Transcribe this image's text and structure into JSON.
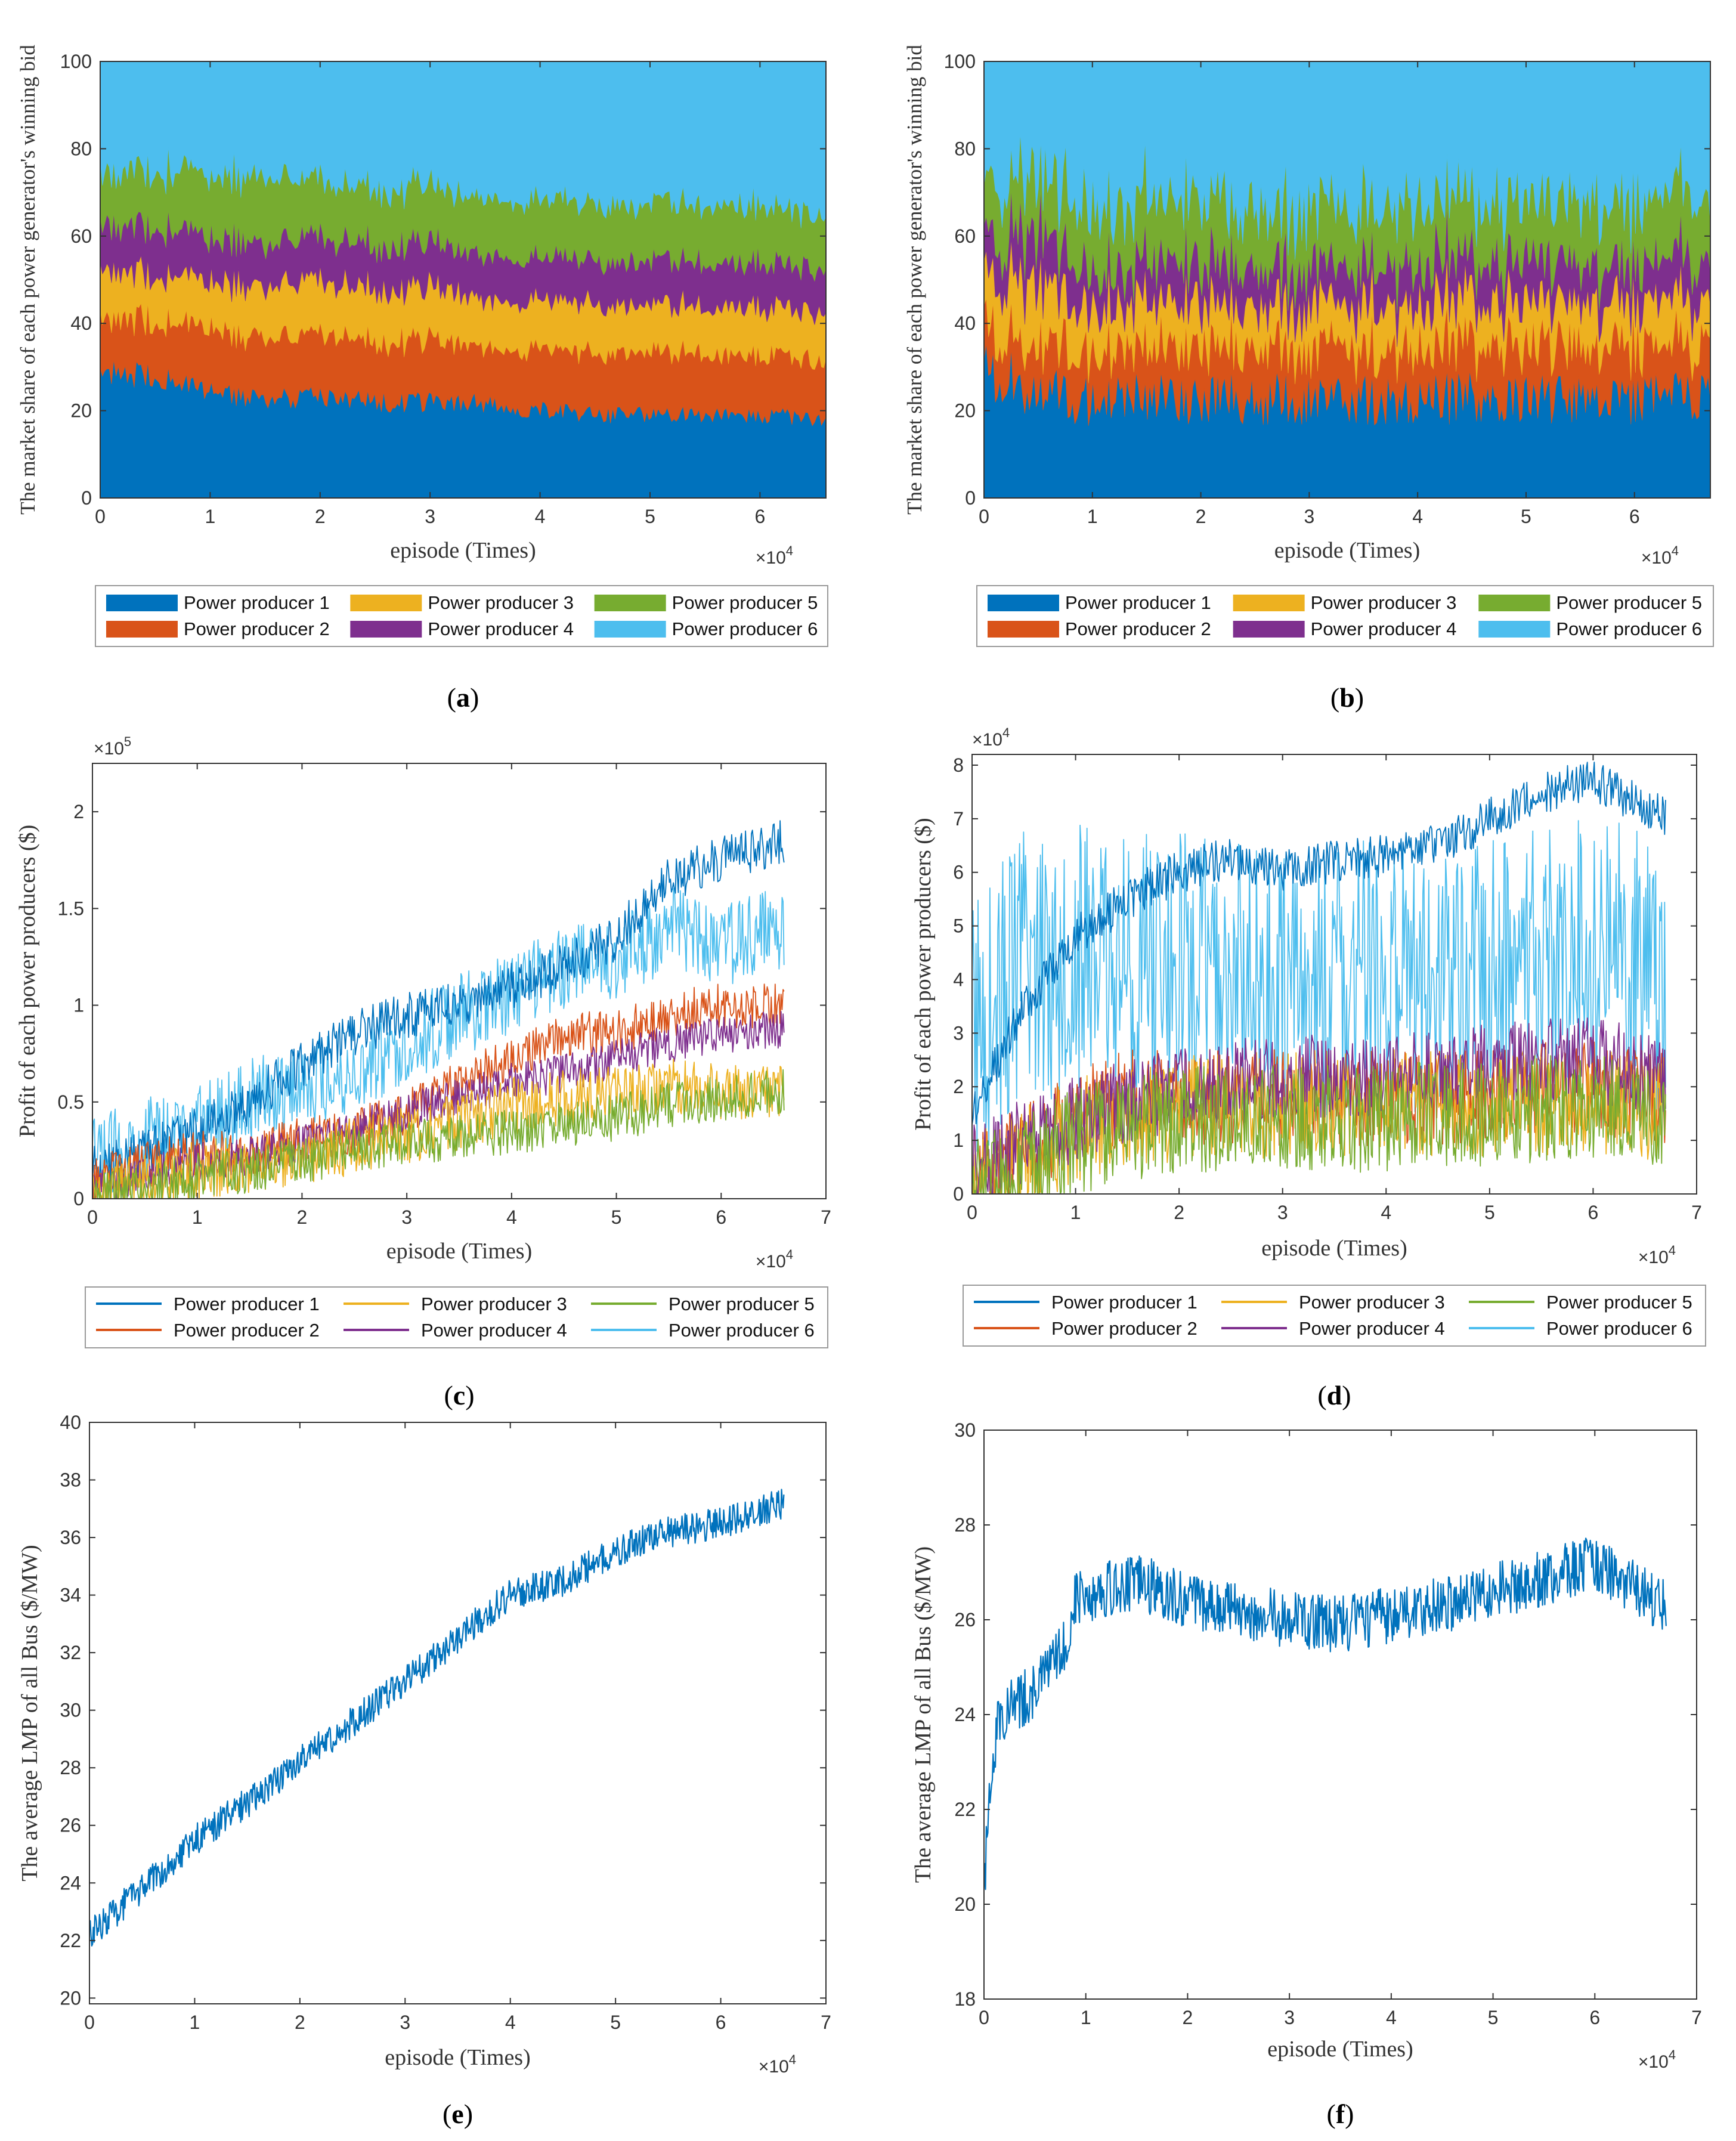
{
  "colors": {
    "p1": "#0072BD",
    "p2": "#D95319",
    "p3": "#EDB120",
    "p4": "#7E2F8E",
    "p5": "#77AC30",
    "p6": "#4DBEEE",
    "axis": "#333333",
    "legend_border": "#9a9a9a"
  },
  "legend": [
    "Power producer 1",
    "Power producer 2",
    "Power producer 3",
    "Power producer 4",
    "Power producer 5",
    "Power producer 6"
  ],
  "x_multiplier": {
    "base": "×10",
    "exp": "4"
  },
  "chart_data": [
    {
      "id": "a",
      "caption": "a",
      "type": "area",
      "xlabel": "episode (Times)",
      "ylabel": "The market share of each power generator's winning bid",
      "xlim": [
        0,
        66000
      ],
      "ylim": [
        0,
        100
      ],
      "xticks": [
        0,
        10000,
        20000,
        30000,
        40000,
        50000,
        60000
      ],
      "xtick_labels": [
        "0",
        "1",
        "2",
        "3",
        "4",
        "5",
        "6"
      ],
      "yticks": [
        0,
        20,
        40,
        60,
        80,
        100
      ],
      "ytick_labels": [
        "0",
        "20",
        "40",
        "60",
        "80",
        "100"
      ],
      "x": [
        0,
        5000,
        10000,
        15000,
        20000,
        25000,
        30000,
        35000,
        40000,
        45000,
        50000,
        55000,
        60000,
        66000
      ],
      "series": [
        {
          "name": "Power producer 1",
          "values": [
            29,
            28,
            24,
            23,
            23,
            22,
            22,
            22,
            20,
            19,
            19,
            19,
            19,
            18
          ]
        },
        {
          "name": "Power producer 2",
          "values": [
            12,
            13,
            14,
            14,
            14,
            14,
            14,
            13,
            14,
            14,
            14,
            14,
            14,
            13
          ]
        },
        {
          "name": "Power producer 3",
          "values": [
            11,
            11,
            11,
            12,
            12,
            12,
            12,
            11,
            11,
            11,
            11,
            11,
            11,
            11
          ]
        },
        {
          "name": "Power producer 4",
          "values": [
            10,
            11,
            10,
            10,
            10,
            10,
            10,
            10,
            10,
            10,
            10,
            10,
            10,
            10
          ]
        },
        {
          "name": "Power producer 5",
          "values": [
            12,
            13,
            14,
            15,
            13,
            13,
            13,
            13,
            13,
            13,
            13,
            13,
            13,
            13
          ]
        },
        {
          "name": "Power producer 6",
          "values": [
            26,
            24,
            27,
            26,
            28,
            29,
            29,
            31,
            32,
            33,
            33,
            33,
            33,
            35
          ]
        }
      ]
    },
    {
      "id": "b",
      "caption": "b",
      "type": "area",
      "xlabel": "episode (Times)",
      "ylabel": "The market share of each power generator's winning bid",
      "xlim": [
        0,
        67000
      ],
      "ylim": [
        0,
        100
      ],
      "xticks": [
        0,
        10000,
        20000,
        30000,
        40000,
        50000,
        60000
      ],
      "xtick_labels": [
        "0",
        "1",
        "2",
        "3",
        "4",
        "5",
        "6"
      ],
      "yticks": [
        0,
        20,
        40,
        60,
        80,
        100
      ],
      "ytick_labels": [
        "0",
        "20",
        "40",
        "60",
        "80",
        "100"
      ],
      "x": [
        0,
        5000,
        10000,
        15000,
        20000,
        25000,
        30000,
        35000,
        40000,
        45000,
        50000,
        55000,
        60000,
        67000
      ],
      "series": [
        {
          "name": "Power producer 1",
          "values": [
            29,
            25,
            22,
            23,
            23,
            23,
            23,
            23,
            23,
            23,
            23,
            23,
            23,
            23
          ]
        },
        {
          "name": "Power producer 2",
          "values": [
            10,
            11,
            12,
            12,
            12,
            12,
            12,
            12,
            12,
            12,
            12,
            12,
            12,
            12
          ]
        },
        {
          "name": "Power producer 3",
          "values": [
            12,
            14,
            10,
            10,
            10,
            10,
            10,
            10,
            10,
            10,
            10,
            10,
            10,
            10
          ]
        },
        {
          "name": "Power producer 4",
          "values": [
            8,
            12,
            8,
            9,
            9,
            9,
            9,
            9,
            9,
            9,
            9,
            9,
            9,
            9
          ]
        },
        {
          "name": "Power producer 5",
          "values": [
            11,
            14,
            14,
            15,
            14,
            14,
            14,
            14,
            14,
            14,
            14,
            14,
            14,
            14
          ]
        },
        {
          "name": "Power producer 6",
          "values": [
            30,
            24,
            34,
            31,
            32,
            32,
            32,
            32,
            32,
            32,
            32,
            32,
            32,
            32
          ]
        }
      ]
    },
    {
      "id": "c",
      "caption": "c",
      "type": "line",
      "xlabel": "episode (Times)",
      "ylabel": "Profit of each power producers ($)",
      "y_multiplier": {
        "base": "×10",
        "exp": "5"
      },
      "xlim": [
        0,
        70000
      ],
      "ylim": [
        0,
        225000
      ],
      "xticks": [
        0,
        10000,
        20000,
        30000,
        40000,
        50000,
        60000,
        70000
      ],
      "xtick_labels": [
        "0",
        "1",
        "2",
        "3",
        "4",
        "5",
        "6",
        "7"
      ],
      "yticks": [
        0,
        50000,
        100000,
        150000,
        200000
      ],
      "ytick_labels": [
        "0",
        "0.5",
        "1",
        "1.5",
        "2"
      ],
      "x": [
        0,
        5000,
        10000,
        15000,
        20000,
        25000,
        30000,
        35000,
        40000,
        45000,
        50000,
        55000,
        60000,
        66000
      ],
      "series": [
        {
          "name": "Power producer 6",
          "values": [
            20000,
            30000,
            40000,
            50000,
            60000,
            65000,
            80000,
            95000,
            105000,
            120000,
            125000,
            140000,
            130000,
            140000
          ],
          "noise": 22000
        },
        {
          "name": "Power producer 1",
          "values": [
            15000,
            25000,
            35000,
            50000,
            70000,
            85000,
            95000,
            100000,
            110000,
            120000,
            135000,
            165000,
            175000,
            185000
          ],
          "noise": 12000
        },
        {
          "name": "Power producer 2",
          "values": [
            10000,
            17000,
            24000,
            23000,
            30000,
            35000,
            45000,
            60000,
            72000,
            85000,
            85000,
            95000,
            100000,
            100000
          ],
          "noise": 12000
        },
        {
          "name": "Power producer 4",
          "values": [
            5000,
            12000,
            19000,
            22000,
            28000,
            35000,
            45000,
            52000,
            60000,
            65000,
            72000,
            80000,
            85000,
            88000
          ],
          "noise": 10000
        },
        {
          "name": "Power producer 3",
          "values": [
            3000,
            8000,
            15000,
            18000,
            22000,
            27000,
            33000,
            40000,
            48000,
            52000,
            55000,
            58000,
            55000,
            55000
          ],
          "noise": 15000
        },
        {
          "name": "Power producer 5",
          "values": [
            2000,
            6000,
            12000,
            15000,
            20000,
            25000,
            28000,
            32000,
            35000,
            38000,
            42000,
            48000,
            52000,
            55000
          ],
          "noise": 12000
        }
      ]
    },
    {
      "id": "d",
      "caption": "d",
      "type": "line",
      "xlabel": "episode (Times)",
      "ylabel": "Profit of each power producers ($)",
      "y_multiplier": {
        "base": "×10",
        "exp": "4"
      },
      "xlim": [
        0,
        70000
      ],
      "ylim": [
        0,
        82000
      ],
      "xticks": [
        0,
        10000,
        20000,
        30000,
        40000,
        50000,
        60000,
        70000
      ],
      "xtick_labels": [
        "0",
        "1",
        "2",
        "3",
        "4",
        "5",
        "6",
        "7"
      ],
      "yticks": [
        0,
        10000,
        20000,
        30000,
        40000,
        50000,
        60000,
        70000,
        80000
      ],
      "ytick_labels": [
        "0",
        "1",
        "2",
        "3",
        "4",
        "5",
        "6",
        "7",
        "8"
      ],
      "x": [
        0,
        5000,
        10000,
        15000,
        20000,
        25000,
        30000,
        35000,
        40000,
        45000,
        50000,
        55000,
        60000,
        67000
      ],
      "series": [
        {
          "name": "Power producer 6",
          "values": [
            30000,
            42000,
            45000,
            42000,
            42000,
            40000,
            38000,
            40000,
            40000,
            40000,
            42000,
            42000,
            45000,
            40000
          ],
          "noise": 26000
        },
        {
          "name": "Power producer 2",
          "values": [
            3000,
            8000,
            15000,
            18000,
            18000,
            18000,
            18000,
            18000,
            18000,
            18000,
            18000,
            20000,
            20000,
            18000
          ],
          "noise": 9000
        },
        {
          "name": "Power producer 3",
          "values": [
            2000,
            6000,
            12000,
            15000,
            16000,
            16000,
            17000,
            17000,
            17000,
            17000,
            17000,
            17000,
            17000,
            16000
          ],
          "noise": 10000
        },
        {
          "name": "Power producer 4",
          "values": [
            5000,
            10000,
            14000,
            17000,
            20000,
            21000,
            22000,
            22000,
            22000,
            23000,
            24000,
            25000,
            25000,
            22000
          ],
          "noise": 8000
        },
        {
          "name": "Power producer 5",
          "values": [
            1000,
            5000,
            10000,
            12000,
            14000,
            14000,
            14000,
            14000,
            14000,
            15000,
            15000,
            16000,
            16000,
            15000
          ],
          "noise": 10000
        },
        {
          "name": "Power producer 1",
          "values": [
            15000,
            35000,
            48000,
            55000,
            60000,
            63000,
            60000,
            62000,
            63000,
            65000,
            70000,
            75000,
            77000,
            70000
          ],
          "noise": 4000
        }
      ]
    },
    {
      "id": "e",
      "caption": "e",
      "type": "line",
      "xlabel": "episode (Times)",
      "ylabel": "The average LMP of all Bus ($/MW)",
      "xlim": [
        0,
        70000
      ],
      "ylim": [
        19.8,
        40
      ],
      "xticks": [
        0,
        10000,
        20000,
        30000,
        40000,
        50000,
        60000,
        70000
      ],
      "xtick_labels": [
        "0",
        "1",
        "2",
        "3",
        "4",
        "5",
        "6",
        "7"
      ],
      "yticks": [
        20,
        22,
        24,
        26,
        28,
        30,
        32,
        34,
        36,
        38,
        40
      ],
      "ytick_labels": [
        "20",
        "22",
        "24",
        "26",
        "28",
        "30",
        "32",
        "34",
        "36",
        "38",
        "40"
      ],
      "x": [
        0,
        5000,
        10000,
        15000,
        20000,
        25000,
        30000,
        35000,
        40000,
        45000,
        50000,
        55000,
        60000,
        66000
      ],
      "series": [
        {
          "name": "Average LMP",
          "values": [
            22.2,
            23.8,
            25.5,
            26.8,
            28.2,
            29.6,
            31.0,
            32.5,
            34.0,
            34.5,
            35.5,
            36.2,
            36.5,
            37.2
          ],
          "noise": 0.55
        }
      ]
    },
    {
      "id": "f",
      "caption": "f",
      "type": "line",
      "xlabel": "episode (Times)",
      "ylabel": "The average LMP of all Bus ($/MW)",
      "xlim": [
        0,
        70000
      ],
      "ylim": [
        18,
        30
      ],
      "xticks": [
        0,
        10000,
        20000,
        30000,
        40000,
        50000,
        60000,
        70000
      ],
      "xtick_labels": [
        "0",
        "1",
        "2",
        "3",
        "4",
        "5",
        "6",
        "7"
      ],
      "yticks": [
        18,
        20,
        22,
        24,
        26,
        28,
        30
      ],
      "ytick_labels": [
        "18",
        "20",
        "22",
        "24",
        "26",
        "28",
        "30"
      ],
      "x": [
        0,
        500,
        1500,
        5000,
        8000,
        9000,
        15000,
        20000,
        25000,
        30000,
        35000,
        40000,
        45000,
        50000,
        55000,
        60000,
        67000
      ],
      "series": [
        {
          "name": "Average LMP",
          "values": [
            20.0,
            22.5,
            24.0,
            24.5,
            25.5,
            26.5,
            26.8,
            26.4,
            26.2,
            26.0,
            25.9,
            26.1,
            26.3,
            26.6,
            26.9,
            27.2,
            26.3
          ],
          "noise": 0.6
        }
      ]
    }
  ]
}
